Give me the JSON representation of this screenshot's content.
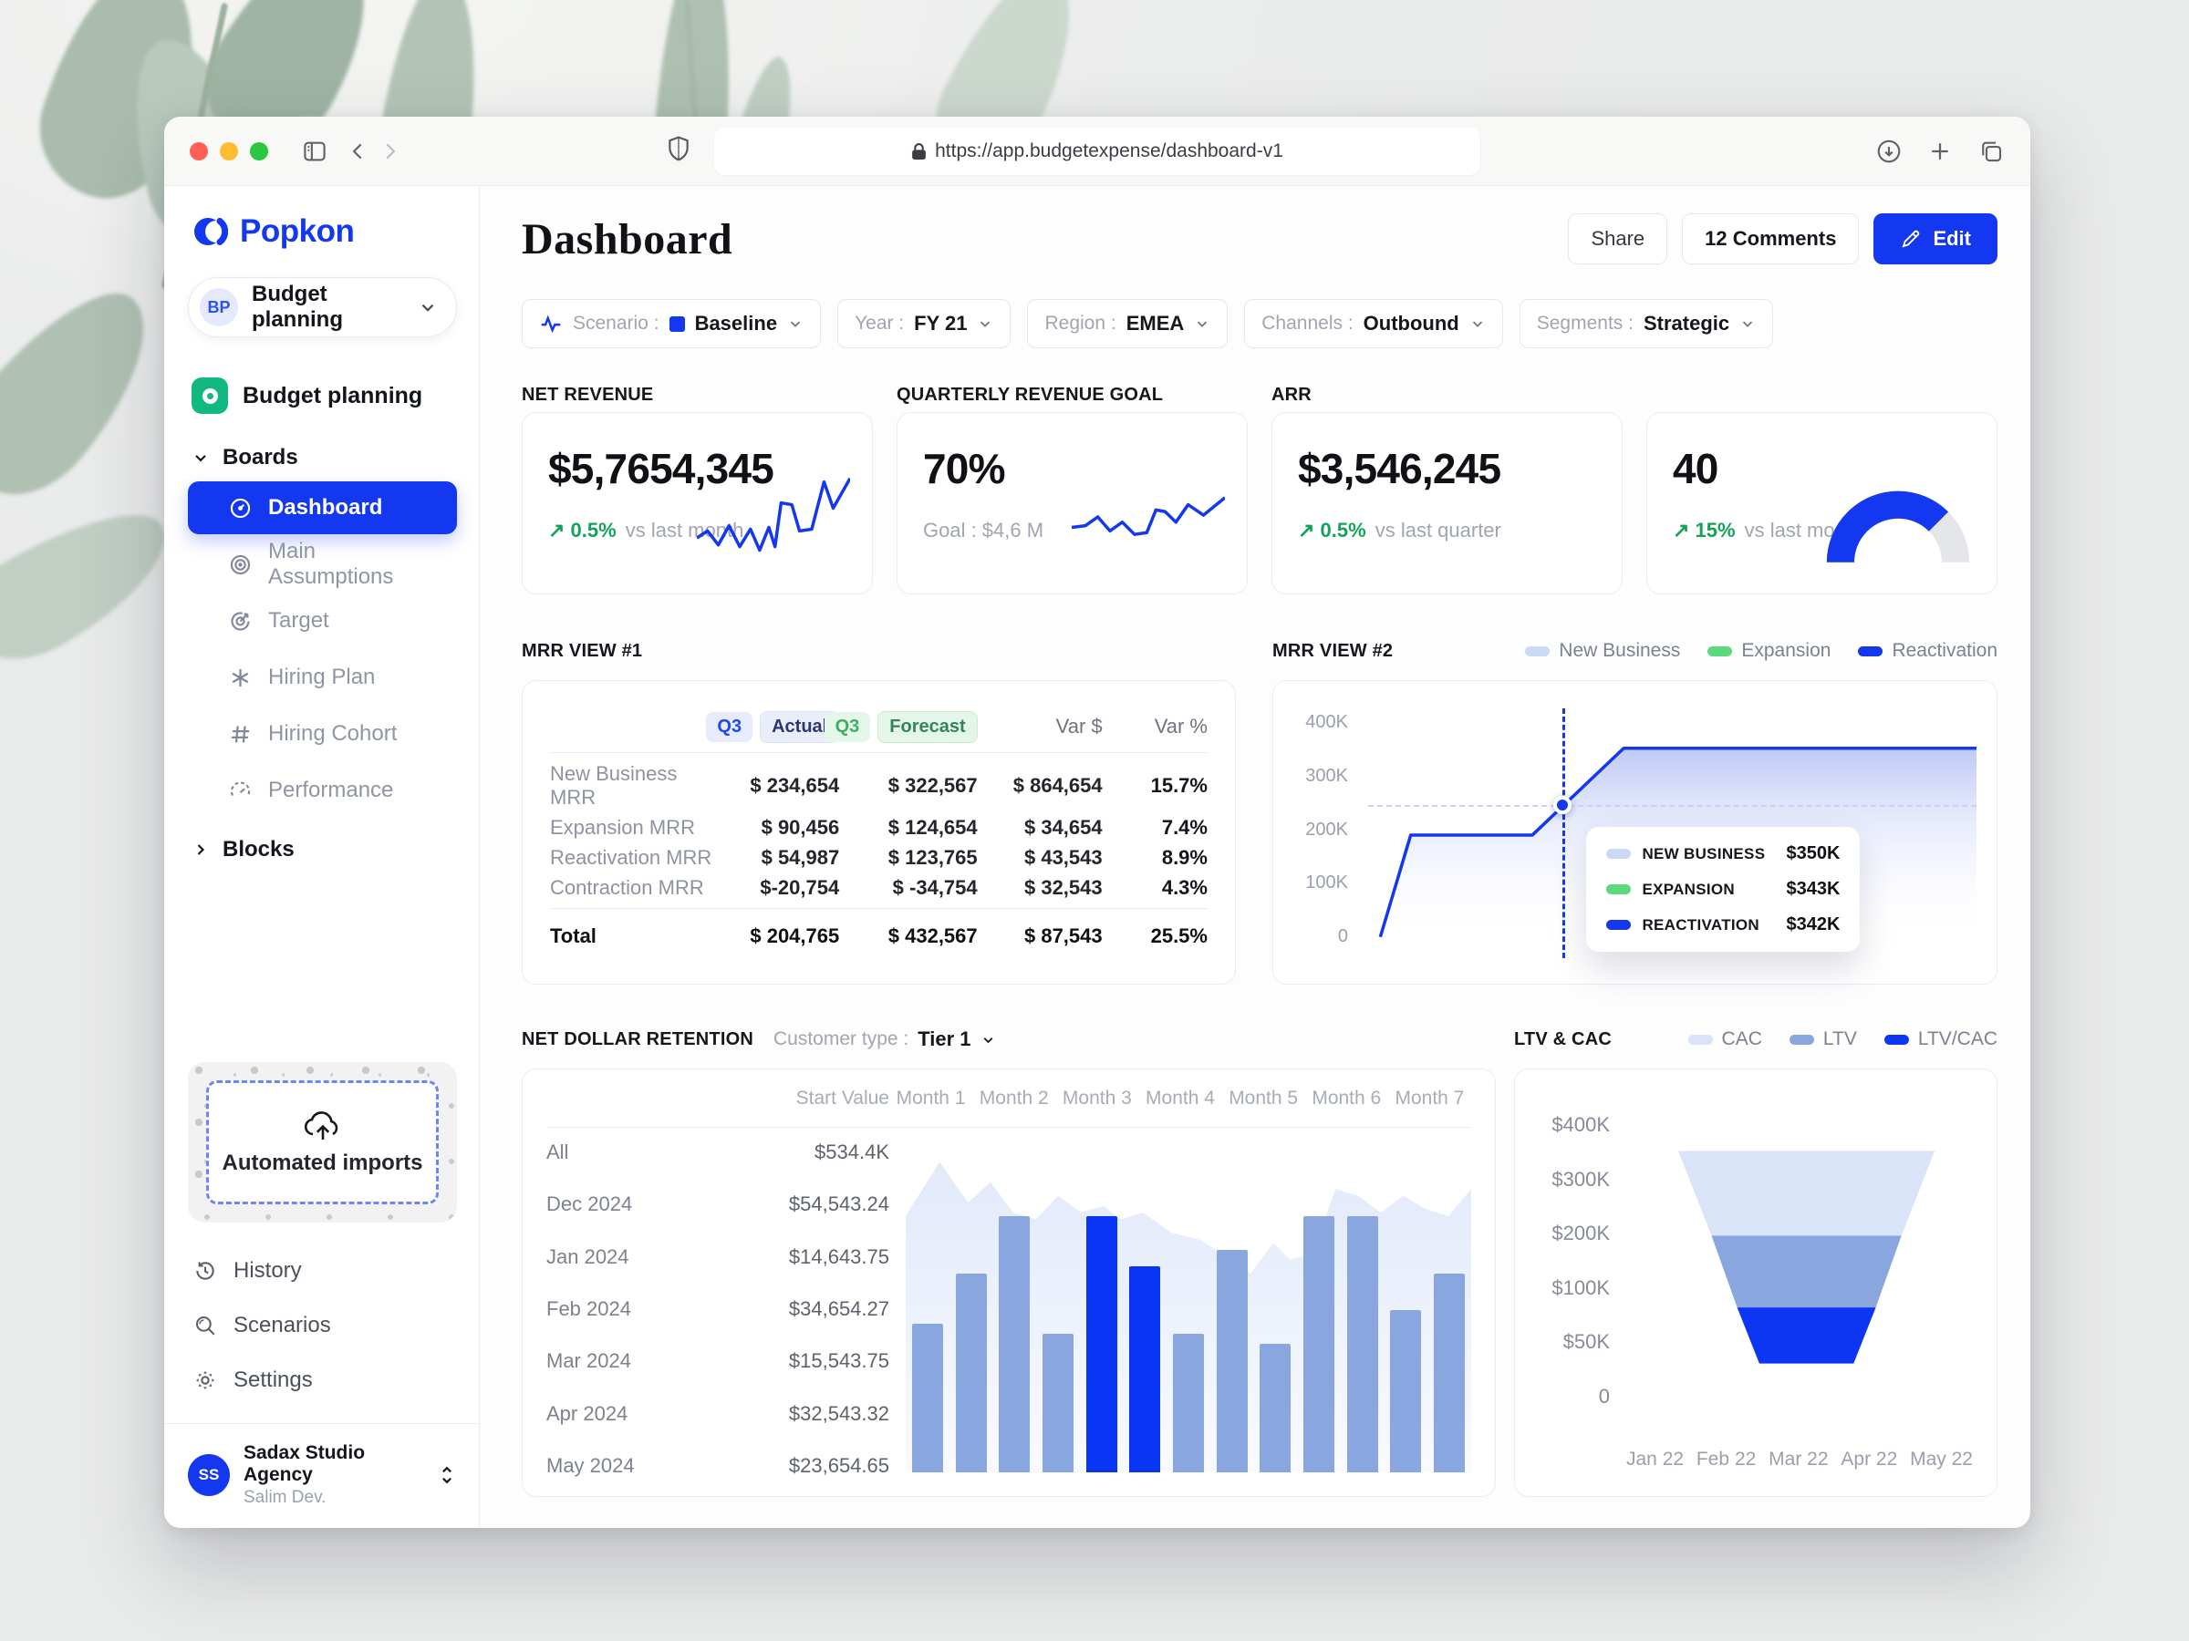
{
  "browser": {
    "url": "https://app.budgetexpense/dashboard-v1"
  },
  "sidebar": {
    "logo_text": "Popkon",
    "workspace": {
      "initials": "BP",
      "name": "Budget planning"
    },
    "project_label": "Budget planning",
    "boards_label": "Boards",
    "board_items": [
      {
        "label": "Dashboard",
        "active": true
      },
      {
        "label": "Main Assumptions"
      },
      {
        "label": "Target"
      },
      {
        "label": "Hiring Plan"
      },
      {
        "label": "Hiring Cohort"
      },
      {
        "label": "Performance"
      }
    ],
    "blocks_label": "Blocks",
    "automated_imports_label": "Automated imports",
    "utility_items": [
      {
        "label": "History"
      },
      {
        "label": "Scenarios"
      },
      {
        "label": "Settings"
      }
    ],
    "user": {
      "initials": "SS",
      "name": "Sadax Studio Agency",
      "role": "Salim Dev."
    }
  },
  "header": {
    "title": "Dashboard",
    "share_label": "Share",
    "comments_label": "12 Comments",
    "edit_label": "Edit"
  },
  "filters": [
    {
      "label": "Scenario :",
      "value": "Baseline",
      "icon": "activity-icon",
      "swatch_color": "#1437f0"
    },
    {
      "label": "Year :",
      "value": "FY 21"
    },
    {
      "label": "Region :",
      "value": "EMEA"
    },
    {
      "label": "Channels :",
      "value": "Outbound"
    },
    {
      "label": "Segments :",
      "value": "Strategic"
    }
  ],
  "kpi_cards": [
    {
      "title": "NET REVENUE",
      "value": "$5,7654,345",
      "delta": "0.5%",
      "delta_note": "vs last month"
    },
    {
      "title": "QUARTERLY REVENUE GOAL",
      "value": "70%",
      "subtext": "Goal : $4,6 M"
    },
    {
      "title": "ARR",
      "value": "$3,546,245",
      "delta": "0.5%",
      "delta_note": "vs last quarter"
    },
    {
      "title": "",
      "value": "40",
      "delta": "15%",
      "delta_note": "vs last month"
    }
  ],
  "mrr_view_1": {
    "title": "MRR VIEW #1",
    "header": {
      "q3_actual_badge": "Q3",
      "actual_label": "Actual",
      "q3_forecast_badge": "Q3",
      "forecast_label": "Forecast",
      "var_dollar": "Var $",
      "var_percent": "Var %"
    },
    "rows": [
      {
        "label": "New Business MRR",
        "actual": "$ 234,654",
        "forecast": "$ 322,567",
        "var_dollar": "$ 864,654",
        "var_percent": "15.7%"
      },
      {
        "label": "Expansion MRR",
        "actual": "$ 90,456",
        "forecast": "$ 124,654",
        "var_dollar": "$ 34,654",
        "var_percent": "7.4%"
      },
      {
        "label": "Reactivation MRR",
        "actual": "$ 54,987",
        "forecast": "$ 123,765",
        "var_dollar": "$ 43,543",
        "var_percent": "8.9%"
      },
      {
        "label": "Contraction MRR",
        "actual": "$-20,754",
        "forecast": "$ -34,754",
        "var_dollar": "$ 32,543",
        "var_percent": "4.3%"
      }
    ],
    "total": {
      "label": "Total",
      "actual": "$ 204,765",
      "forecast": "$ 432,567",
      "var_dollar": "$ 87,543",
      "var_percent": "25.5%"
    }
  },
  "mrr_view_2": {
    "title": "MRR VIEW #2",
    "legend": [
      {
        "label": "New Business",
        "color": "#c9d9f6"
      },
      {
        "label": "Expansion",
        "color": "#5bd97c"
      },
      {
        "label": "Reactivation",
        "color": "#1437f0"
      }
    ],
    "tooltip": [
      {
        "label": "NEW BUSINESS",
        "value": "$350K",
        "color": "#c9d9f6"
      },
      {
        "label": "EXPANSION",
        "value": "$343K",
        "color": "#5bd97c"
      },
      {
        "label": "REACTIVATION",
        "value": "$342K",
        "color": "#1437f0"
      }
    ]
  },
  "ndr": {
    "title": "NET DOLLAR RETENTION",
    "customer_type_label": "Customer type :",
    "customer_type_value": "Tier 1",
    "columns": [
      "Start Value",
      "Month 1",
      "Month 2",
      "Month 3",
      "Month 4",
      "Month 5",
      "Month 6",
      "Month 7"
    ],
    "rows": [
      {
        "label": "All",
        "value": "$534.4K"
      },
      {
        "label": "Dec 2024",
        "value": "$54,543.24"
      },
      {
        "label": "Jan 2024",
        "value": "$14,643.75"
      },
      {
        "label": "Feb 2024",
        "value": "$34,654.27"
      },
      {
        "label": "Mar 2024",
        "value": "$15,543.75"
      },
      {
        "label": "Apr 2024",
        "value": "$32,543.32"
      },
      {
        "label": "May 2024",
        "value": "$23,654.65"
      }
    ]
  },
  "ltv_cac": {
    "title": "LTV & CAC",
    "legend": [
      {
        "label": "CAC",
        "color": "#d9e4f8"
      },
      {
        "label": "LTV",
        "color": "#8aa6de"
      },
      {
        "label": "LTV/CAC",
        "color": "#0d36f4"
      }
    ]
  },
  "chart_data": [
    {
      "id": "spark-net-revenue",
      "type": "line",
      "color": "#1437f0",
      "points": [
        [
          0,
          26
        ],
        [
          7,
          34
        ],
        [
          14,
          18
        ],
        [
          21,
          40
        ],
        [
          28,
          16
        ],
        [
          35,
          36
        ],
        [
          41,
          12
        ],
        [
          47,
          38
        ],
        [
          51,
          16
        ],
        [
          55,
          66
        ],
        [
          62,
          64
        ],
        [
          67,
          34
        ],
        [
          75,
          36
        ],
        [
          83,
          90
        ],
        [
          89,
          60
        ],
        [
          100,
          94
        ]
      ]
    },
    {
      "id": "spark-quarterly",
      "type": "line",
      "color": "#1437f0",
      "points": [
        [
          0,
          38
        ],
        [
          9,
          40
        ],
        [
          17,
          50
        ],
        [
          25,
          34
        ],
        [
          33,
          44
        ],
        [
          41,
          30
        ],
        [
          49,
          32
        ],
        [
          55,
          58
        ],
        [
          61,
          56
        ],
        [
          68,
          44
        ],
        [
          76,
          64
        ],
        [
          86,
          52
        ],
        [
          100,
          72
        ]
      ]
    },
    {
      "id": "gauge-arr-count",
      "type": "gauge",
      "percent": 75,
      "color": "#1437f0",
      "track": "#e4e6ea"
    },
    {
      "id": "mrr-line",
      "type": "area-line",
      "title": "MRR VIEW #2",
      "ymax": 400,
      "yticks": [
        "400K",
        "300K",
        "200K",
        "100K",
        "0"
      ],
      "series": [
        {
          "name": "Reactivation",
          "points_x_pct_y_thousands": [
            [
              2,
              2
            ],
            [
              7,
              190
            ],
            [
              27,
              190
            ],
            [
              42,
              350
            ],
            [
              100,
              350
            ]
          ]
        }
      ],
      "marker": {
        "x": 32,
        "y": 245
      },
      "line_color": "#1437f0",
      "fill_top": "#b3c0f4",
      "fill_bottom": "#ffffff"
    },
    {
      "id": "ndr-bars",
      "type": "bars-area",
      "title": "NET DOLLAR RETENTION",
      "bar_values_pct": [
        44,
        59,
        76,
        41,
        76,
        61,
        41,
        66,
        38,
        76,
        76,
        48,
        59
      ],
      "highlight_indexes": [
        4,
        5
      ],
      "bar_color": "#8aa6de",
      "highlight_color": "#0a34f4",
      "ridge_pct": [
        [
          0,
          76
        ],
        [
          6,
          92
        ],
        [
          11,
          80
        ],
        [
          15,
          86
        ],
        [
          19,
          77
        ],
        [
          23,
          75
        ],
        [
          27,
          82
        ],
        [
          31,
          77
        ],
        [
          35,
          79
        ],
        [
          38,
          75
        ],
        [
          42,
          77
        ],
        [
          47,
          71
        ],
        [
          52,
          69
        ],
        [
          57,
          64
        ],
        [
          61,
          59
        ],
        [
          65,
          68
        ],
        [
          68,
          63
        ],
        [
          72,
          65
        ],
        [
          76,
          84
        ],
        [
          80,
          82
        ],
        [
          84,
          77
        ],
        [
          88,
          82
        ],
        [
          92,
          78
        ],
        [
          96,
          76
        ],
        [
          100,
          84
        ]
      ],
      "area_top_color": "#e2e9fa",
      "area_bottom_color": "#f8fafe"
    },
    {
      "id": "ltv-funnel",
      "type": "funnel",
      "title": "LTV & CAC",
      "center_x": 52,
      "bands": [
        {
          "label": "CAC",
          "color": "#d9e4f8",
          "top_y": 14,
          "bottom_y": 42.7,
          "top_halfw": 37,
          "bottom_halfw": 27.4,
          "value_range_k": [
            335,
            190
          ]
        },
        {
          "label": "LTV",
          "color": "#8aa6de",
          "top_y": 42.7,
          "bottom_y": 67,
          "top_halfw": 27.4,
          "bottom_halfw": 20,
          "value_range_k": [
            190,
            85
          ]
        },
        {
          "label": "LTV/CAC",
          "color": "#0d36f4",
          "top_y": 67,
          "bottom_y": 86,
          "top_halfw": 20,
          "bottom_halfw": 13.6,
          "value_range_k": [
            85,
            35
          ]
        }
      ],
      "yticks": [
        "$400K",
        "$300K",
        "$200K",
        "$100K",
        "$50K",
        "0"
      ],
      "xticks": [
        "Jan 22",
        "Feb 22",
        "Mar 22",
        "Apr 22",
        "May 22"
      ]
    }
  ]
}
